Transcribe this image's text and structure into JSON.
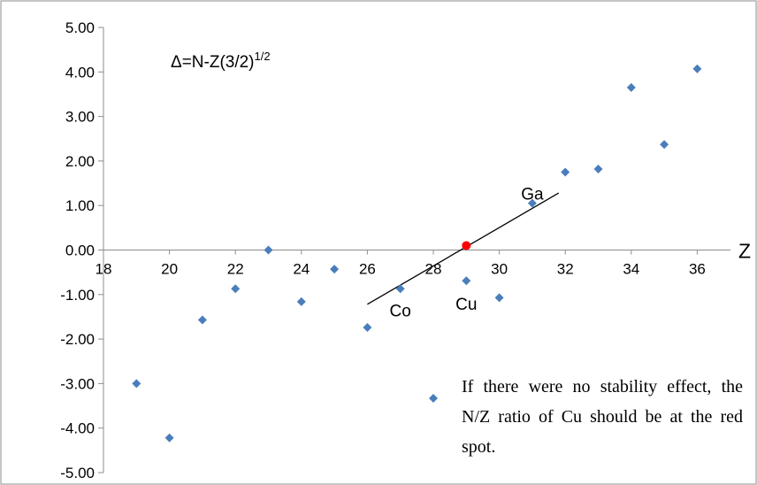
{
  "chart_data": {
    "type": "scatter",
    "formula": {
      "base": "Δ=N-Z(3/2)",
      "sup": "1/2"
    },
    "x_axis_label": "Z",
    "xlim": [
      18,
      37
    ],
    "ylim": [
      -5,
      5
    ],
    "x_ticks": [
      "18",
      "20",
      "22",
      "24",
      "26",
      "28",
      "30",
      "32",
      "34",
      "36"
    ],
    "y_ticks": [
      "5.00",
      "4.00",
      "3.00",
      "2.00",
      "1.00",
      "0.00",
      "-1.00",
      "-2.00",
      "-3.00",
      "-4.00",
      "-5.00"
    ],
    "series": [
      {
        "color": "#4a7ebb",
        "points": [
          {
            "x": 19,
            "y": -3.0
          },
          {
            "x": 20,
            "y": -4.22
          },
          {
            "x": 21,
            "y": -1.57
          },
          {
            "x": 22,
            "y": -0.87
          },
          {
            "x": 23,
            "y": 0.0
          },
          {
            "x": 24,
            "y": -1.16
          },
          {
            "x": 25,
            "y": -0.43
          },
          {
            "x": 26,
            "y": -1.74
          },
          {
            "x": 27,
            "y": -0.87
          },
          {
            "x": 28,
            "y": -3.33
          },
          {
            "x": 29,
            "y": -0.69
          },
          {
            "x": 30,
            "y": -1.07
          },
          {
            "x": 31,
            "y": 1.05
          },
          {
            "x": 32,
            "y": 1.75
          },
          {
            "x": 33,
            "y": 1.82
          },
          {
            "x": 34,
            "y": 3.65
          },
          {
            "x": 35,
            "y": 2.37
          },
          {
            "x": 36,
            "y": 4.07
          }
        ]
      }
    ],
    "red_spot": {
      "x": 29,
      "y": 0.1,
      "color": "#ff0000"
    },
    "trend_line": {
      "x1": 26,
      "y1": -1.22,
      "x2": 31.8,
      "y2": 1.28
    },
    "annotations": [
      {
        "text": "Co",
        "x": 27,
        "y": -1.37
      },
      {
        "text": "Cu",
        "x": 29,
        "y": -1.22
      },
      {
        "text": "Ga",
        "x": 31,
        "y": 1.25
      }
    ],
    "note": "If there were no stability effect, the N/Z ratio of Cu should be at the red spot."
  }
}
